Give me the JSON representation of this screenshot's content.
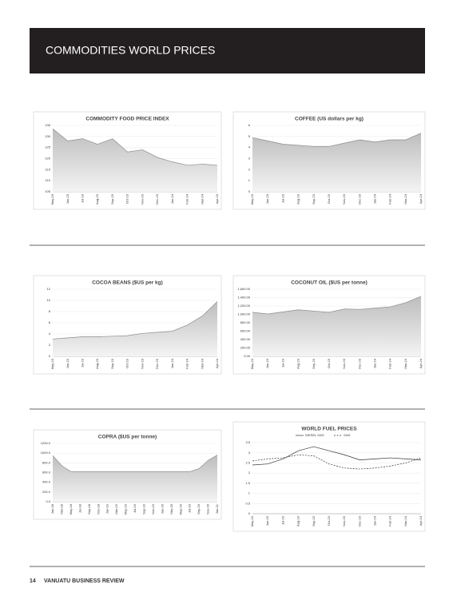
{
  "header": {
    "title": "COMMODITIES WORLD PRICES"
  },
  "footer": {
    "page": "14",
    "publication": "VANUATU BUSINESS REVIEW"
  },
  "chart_data": [
    {
      "type": "area",
      "title": "COMMODITY FOOD PRICE INDEX",
      "categories": [
        "May-23",
        "Jun-23",
        "Jul-23",
        "Aug-23",
        "Sep-23",
        "Oct-23",
        "Nov-23",
        "Dec-23",
        "Jan-24",
        "Feb-24",
        "Mar-24",
        "Apr-24"
      ],
      "values": [
        133.5,
        128,
        129,
        126.5,
        129,
        123,
        124,
        120.5,
        118.5,
        117,
        117.5,
        117
      ],
      "color": "#8c8c8c",
      "ylim": [
        105,
        135
      ],
      "yticks": [
        105,
        110,
        115,
        120,
        125,
        130,
        135
      ]
    },
    {
      "type": "area",
      "title": "COFFEE (US dollars per kg)",
      "categories": [
        "May-23",
        "Jun-23",
        "Jul-23",
        "Aug-23",
        "Sep-23",
        "Oct-23",
        "Nov-23",
        "Dec-23",
        "Jan-24",
        "Feb-24",
        "Mar-24",
        "Apr-24"
      ],
      "values": [
        4.9,
        4.6,
        4.3,
        4.2,
        4.1,
        4.1,
        4.4,
        4.7,
        4.5,
        4.7,
        4.7,
        5.3
      ],
      "color": "#8c8c8c",
      "ylim": [
        0,
        6
      ],
      "yticks": [
        0,
        1,
        2,
        3,
        4,
        5,
        6
      ]
    },
    {
      "type": "area",
      "title": "COCOA BEANS ($US per kg)",
      "categories": [
        "May-23",
        "Jun-23",
        "Jul-23",
        "Aug-23",
        "Sep-23",
        "Oct-23",
        "Nov-23",
        "Dec-23",
        "Jan-24",
        "Feb-24",
        "Mar-24",
        "Apr-24"
      ],
      "values": [
        3.1,
        3.3,
        3.5,
        3.5,
        3.6,
        3.7,
        4.1,
        4.3,
        4.5,
        5.6,
        7.2,
        9.8
      ],
      "color": "#8c8c8c",
      "ylim": [
        0,
        12
      ],
      "yticks": [
        0,
        2,
        4,
        6,
        8,
        10,
        12
      ]
    },
    {
      "type": "area",
      "title": "COCONUT OIL ($US per tonne)",
      "categories": [
        "May-23",
        "Jun-23",
        "Jul-23",
        "Aug-23",
        "Sep-23",
        "Oct-23",
        "Nov-23",
        "Dec-23",
        "Jan-24",
        "Feb-24",
        "Mar-24",
        "Apr-24"
      ],
      "values": [
        1050,
        1010,
        1060,
        1110,
        1080,
        1050,
        1130,
        1120,
        1150,
        1180,
        1280,
        1430
      ],
      "color": "#8c8c8c",
      "ylim": [
        0,
        1600
      ],
      "yticks": [
        {
          "value": 0,
          "label": "0.00"
        },
        {
          "value": 200,
          "label": "200.00"
        },
        {
          "value": 400,
          "label": "400.00"
        },
        {
          "value": 600,
          "label": "600.00"
        },
        {
          "value": 800,
          "label": "800.00"
        },
        {
          "value": 1000,
          "label": "1,000.00"
        },
        {
          "value": 1200,
          "label": "1,200.00"
        },
        {
          "value": 1400,
          "label": "1,400.00"
        },
        {
          "value": 1600,
          "label": "1,600.00"
        }
      ]
    },
    {
      "type": "area",
      "title": "COPRA ($US per tonne)",
      "categories": [
        "Jan-18",
        "Mar-18",
        "May-18",
        "Jul-18",
        "Sep-18",
        "Nov-18",
        "Jan-19",
        "Mar-19",
        "May-19",
        "Jul-19",
        "Sep-19",
        "Nov-19",
        "Jan-20",
        "Mar-20",
        "May-20",
        "Jul-20",
        "Sep-20",
        "Nov-20",
        "Jan-21"
      ],
      "values": [
        950,
        740,
        620,
        620,
        620,
        620,
        620,
        620,
        620,
        620,
        620,
        620,
        620,
        620,
        620,
        620,
        680,
        850,
        960
      ],
      "color": "#8c8c8c",
      "ylim": [
        0,
        1200
      ],
      "yticks": [
        {
          "value": 0,
          "label": "0.0"
        },
        {
          "value": 200,
          "label": "200.0"
        },
        {
          "value": 400,
          "label": "400.0"
        },
        {
          "value": 600,
          "label": "600.0"
        },
        {
          "value": 800,
          "label": "800.0"
        },
        {
          "value": 1000,
          "label": "1000.0"
        },
        {
          "value": 1200,
          "label": "1200.0"
        }
      ]
    },
    {
      "type": "line",
      "title": "WORLD FUEL PRICES",
      "categories": [
        "May-23",
        "Jun-23",
        "Jul-23",
        "Aug-23",
        "Sep-23",
        "Oct-23",
        "Nov-23",
        "Dec-23",
        "Jan-24",
        "Feb-24",
        "Mar-24",
        "Apr-24"
      ],
      "series": [
        {
          "name": "DIESEL GAS",
          "color": "#333333",
          "dash": false,
          "values": [
            2.4,
            2.45,
            2.7,
            3.1,
            3.3,
            3.1,
            2.9,
            2.65,
            2.7,
            2.75,
            2.7,
            2.65
          ]
        },
        {
          "name": "GAS",
          "color": "#333333",
          "dash": true,
          "values": [
            2.6,
            2.7,
            2.75,
            2.9,
            2.85,
            2.45,
            2.25,
            2.2,
            2.25,
            2.35,
            2.5,
            2.75
          ]
        }
      ],
      "ylim": [
        0,
        3.5
      ],
      "yticks": [
        0,
        0.5,
        1,
        1.5,
        2,
        2.5,
        3,
        3.5
      ],
      "legend": "top"
    }
  ]
}
